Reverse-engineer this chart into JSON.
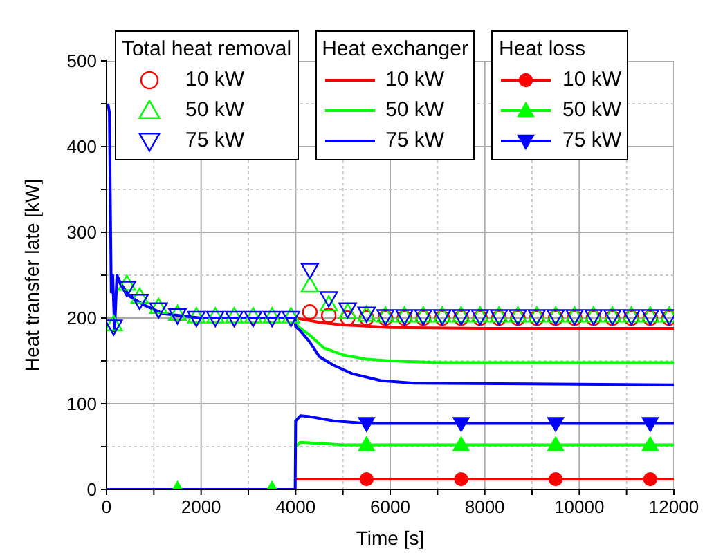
{
  "chart_data": {
    "type": "line",
    "xlabel": "Time [s]",
    "ylabel": "Heat transfer late [kW]",
    "xlim": [
      0,
      12000
    ],
    "ylim": [
      0,
      500
    ],
    "xticks": [
      0,
      {
        "value": 1000,
        "label": null
      },
      2000,
      {
        "value": 3000,
        "label": null
      },
      4000,
      {
        "value": 5000,
        "label": null
      },
      6000,
      {
        "value": 7000,
        "label": null
      },
      8000,
      {
        "value": 9000,
        "label": null
      },
      10000,
      {
        "value": 11000,
        "label": null
      },
      12000
    ],
    "yticks": [
      0,
      {
        "value": 50,
        "label": null
      },
      100,
      {
        "value": 150,
        "label": null
      },
      200,
      {
        "value": 250,
        "label": null
      },
      300,
      {
        "value": 350,
        "label": null
      },
      400,
      {
        "value": 450,
        "label": null
      },
      500
    ],
    "grid": true,
    "legend": "top",
    "annotations": [
      "Total heat removal",
      "Heat exchanger",
      "Heat loss"
    ],
    "series": [
      {
        "name": "10 kW",
        "type": "scatter",
        "marker": "circle",
        "color": "#ff0000",
        "x": [
          4300,
          4700,
          5100,
          5500,
          5900,
          6300,
          6700,
          7100,
          7500,
          7900,
          8300,
          8700,
          9100,
          9500,
          9900,
          10300,
          10700,
          11100,
          11500,
          11900
        ],
        "values": [
          207,
          203,
          200,
          200,
          200,
          200,
          200,
          200,
          200,
          200,
          200,
          200,
          200,
          200,
          200,
          200,
          200,
          200,
          200,
          200
        ]
      },
      {
        "name": "50 kW",
        "type": "scatter",
        "marker": "triangle",
        "color": "#00ff00",
        "x": [
          150,
          430,
          700,
          1100,
          1500,
          1900,
          2300,
          2700,
          3100,
          3500,
          3900,
          4300,
          4700,
          5100,
          5500,
          5900,
          6300,
          6700,
          7100,
          7500,
          7900,
          8300,
          8700,
          9100,
          9500,
          9900,
          10300,
          10700,
          11100,
          11500,
          11900
        ],
        "values": [
          193,
          240,
          225,
          213,
          205,
          202,
          202,
          202,
          202,
          202,
          202,
          238,
          216,
          207,
          204,
          203,
          203,
          203,
          203,
          203,
          203,
          203,
          203,
          203,
          203,
          203,
          203,
          203,
          203,
          203,
          203
        ]
      },
      {
        "name": "75 kW",
        "type": "scatter",
        "marker": "triangle-down",
        "color": "#0000ff",
        "x": [
          150,
          430,
          700,
          1100,
          1500,
          1900,
          2300,
          2700,
          3100,
          3500,
          3900,
          4300,
          4700,
          5100,
          5500,
          5900,
          6300,
          6700,
          7100,
          7500,
          7900,
          8300,
          8700,
          9100,
          9500,
          9900,
          10300,
          10700,
          11100,
          11500,
          11900
        ],
        "values": [
          190,
          235,
          220,
          210,
          203,
          200,
          200,
          200,
          200,
          200,
          200,
          256,
          223,
          210,
          205,
          202,
          202,
          202,
          202,
          202,
          202,
          202,
          202,
          202,
          202,
          202,
          202,
          202,
          202,
          202,
          202
        ]
      },
      {
        "name": "10 kW",
        "color": "#ff0000",
        "x": [
          4000,
          4500,
          5000,
          6000,
          8000,
          12000
        ],
        "values": [
          200,
          195,
          192,
          189,
          188,
          188
        ]
      },
      {
        "name": "50 kW",
        "color": "#00ff00",
        "x": [
          4000,
          4100,
          4300,
          4600,
          5000,
          5500,
          6000,
          7000,
          12000
        ],
        "values": [
          193,
          188,
          180,
          165,
          157,
          152,
          150,
          148,
          148
        ]
      },
      {
        "name": "75 kW",
        "color": "#0000ff",
        "x": [
          30,
          60,
          100,
          130,
          170,
          220,
          300,
          500,
          800,
          1200,
          2000,
          3990,
          4000,
          4100,
          4300,
          4500,
          4800,
          5200,
          5800,
          6500,
          12000
        ],
        "values": [
          450,
          440,
          230,
          250,
          185,
          250,
          240,
          225,
          215,
          205,
          200,
          200,
          190,
          185,
          172,
          155,
          145,
          135,
          127,
          124,
          122
        ]
      },
      {
        "name": "10 kW",
        "type": "scatter",
        "marker": "circle",
        "line_style": "solid",
        "color": "#ff0000",
        "x": [
          5500,
          7500,
          9500,
          11500
        ],
        "values": [
          12,
          12,
          12,
          12
        ]
      },
      {
        "name": "50 kW",
        "type": "scatter",
        "marker": "triangle",
        "line_style": "solid",
        "color": "#00ff00",
        "x": [
          1500,
          3500,
          5500,
          7500,
          9500,
          11500
        ],
        "values": [
          0,
          0,
          52,
          52,
          52,
          52
        ]
      },
      {
        "name": "75 kW",
        "type": "scatter",
        "marker": "triangle-down",
        "line_style": "solid",
        "color": "#0000ff",
        "x": [
          5500,
          7500,
          9500,
          11500
        ],
        "values": [
          77,
          77,
          77,
          77
        ]
      },
      {
        "color": "#ff0000",
        "x": [
          4000,
          12000
        ],
        "values": [
          12,
          12
        ]
      },
      {
        "color": "#00ff00",
        "x": [
          4000,
          4100,
          4400,
          5000,
          5500,
          12000
        ],
        "values": [
          50,
          55,
          54,
          52,
          52,
          52
        ]
      },
      {
        "color": "#0000ff",
        "x": [
          0,
          3990,
          4000,
          4100,
          4300,
          4800,
          5500,
          12000
        ],
        "values": [
          0,
          0,
          80,
          86,
          85,
          80,
          77,
          77
        ]
      }
    ]
  }
}
